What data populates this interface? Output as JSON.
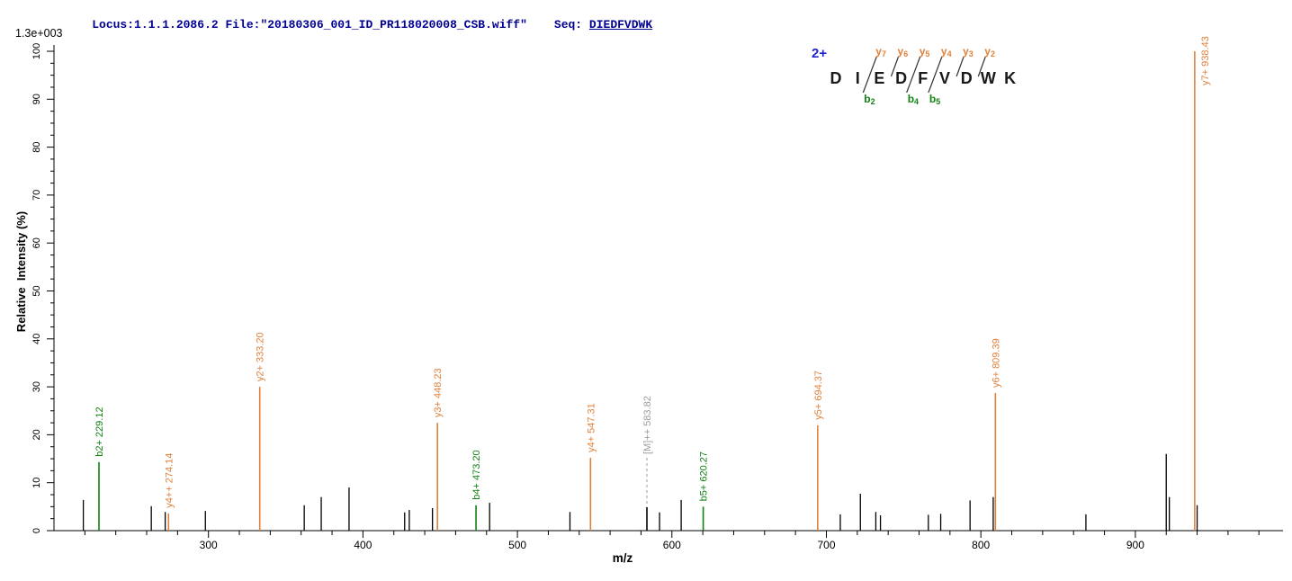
{
  "header": {
    "locus_file": "Locus:1.1.1.2086.2 File:\"20180306_001_ID_PR118020008_CSB.wiff\"",
    "seq_prefix": "Seq: ",
    "sequence": "DIEDFVDWK"
  },
  "axes": {
    "y_title": "Relative  Intensity (%)",
    "x_title": "m/z",
    "base_peak_intensity": "1.3e+003"
  },
  "sequence_diagram": {
    "charge": "2+",
    "residues": [
      "D",
      "I",
      "E",
      "D",
      "F",
      "V",
      "D",
      "W",
      "K"
    ],
    "fragments": [
      {
        "after": 2,
        "y": "y7",
        "b": "b2"
      },
      {
        "after": 3,
        "y": "y6"
      },
      {
        "after": 4,
        "y": "y5",
        "b": "b4"
      },
      {
        "after": 5,
        "y": "y4",
        "b": "b5"
      },
      {
        "after": 6,
        "y": "y3"
      },
      {
        "after": 7,
        "y": "y2"
      }
    ],
    "colors": {
      "charge": "#2222CC",
      "residue": "#1A1A1A",
      "y_ion": "#E0813C",
      "b_ion": "#128012",
      "slash": "#333333"
    }
  },
  "chart_data": {
    "type": "bar",
    "subtype": "ms2-centroid-spectrum",
    "title": "",
    "xlabel": "m/z",
    "ylabel": "Relative Intensity (%)",
    "xlim": [
      200,
      995
    ],
    "ylim": [
      0,
      100
    ],
    "base_peak_intensity": "1.3e+003",
    "x_major_ticks": [
      300,
      400,
      500,
      600,
      700,
      800,
      900
    ],
    "x_minor_tick_step": 20,
    "y_major_tick_step": 10,
    "y_minor_tick_step": 2.5,
    "legend": "none",
    "grid": false,
    "annotated_peaks": [
      {
        "label": "b2+ 229.12",
        "mz": 229.12,
        "intensity": 14.3,
        "ion": "b"
      },
      {
        "label": "y4++ 274.14",
        "mz": 274.14,
        "intensity": 3.6,
        "ion": "y"
      },
      {
        "label": "y2+ 333.20",
        "mz": 333.2,
        "intensity": 30.0,
        "ion": "y"
      },
      {
        "label": "y3+ 448.23",
        "mz": 448.23,
        "intensity": 22.5,
        "ion": "y"
      },
      {
        "label": "b4+ 473.20",
        "mz": 473.2,
        "intensity": 5.3,
        "ion": "b"
      },
      {
        "label": "y4+ 547.31",
        "mz": 547.31,
        "intensity": 15.2,
        "ion": "y"
      },
      {
        "label": "[M]++ 583.82",
        "mz": 583.82,
        "intensity": 4.9,
        "ion": "precursor"
      },
      {
        "label": "b5+ 620.27",
        "mz": 620.27,
        "intensity": 5.0,
        "ion": "b"
      },
      {
        "label": "y5+ 694.37",
        "mz": 694.37,
        "intensity": 22.0,
        "ion": "y"
      },
      {
        "label": "y6+ 809.39",
        "mz": 809.39,
        "intensity": 28.7,
        "ion": "y"
      },
      {
        "label": "y7+ 938.43",
        "mz": 938.43,
        "intensity": 100.0,
        "ion": "y"
      }
    ],
    "unannotated_peaks": [
      [
        219,
        6.4
      ],
      [
        263,
        5.1
      ],
      [
        272,
        3.9
      ],
      [
        298,
        4.1
      ],
      [
        362,
        5.3
      ],
      [
        373,
        7.0
      ],
      [
        391,
        9.0
      ],
      [
        427,
        3.8
      ],
      [
        430,
        4.3
      ],
      [
        445,
        4.7
      ],
      [
        482,
        5.8
      ],
      [
        534,
        3.9
      ],
      [
        592,
        3.8
      ],
      [
        606,
        6.4
      ],
      [
        709,
        3.4
      ],
      [
        722,
        7.7
      ],
      [
        732,
        3.9
      ],
      [
        735,
        3.2
      ],
      [
        766,
        3.3
      ],
      [
        774,
        3.5
      ],
      [
        793,
        6.3
      ],
      [
        808,
        7.0
      ],
      [
        868,
        3.4
      ],
      [
        920,
        16.0
      ],
      [
        922,
        7.0
      ],
      [
        940,
        5.3
      ]
    ],
    "colors": {
      "y_ion": "#E0813C",
      "b_ion": "#128012",
      "precursor_label": "#9C9C9C",
      "peak": "#000000",
      "axis": "#000000"
    }
  }
}
